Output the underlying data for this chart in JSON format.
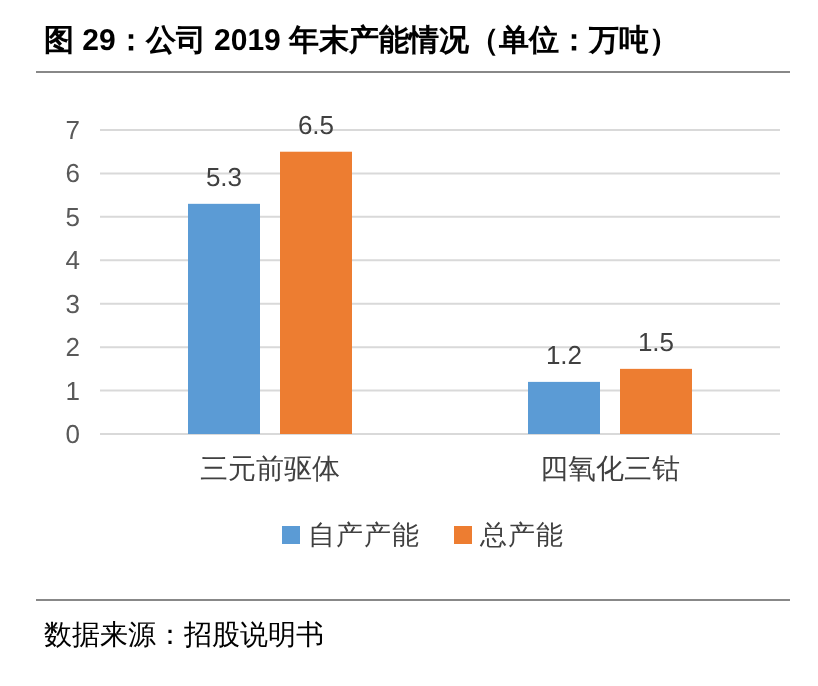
{
  "chart_data": {
    "type": "bar",
    "title": "图 29：公司 2019 年末产能情况（单位：万吨）",
    "categories": [
      "三元前驱体",
      "四氧化三钴"
    ],
    "series": [
      {
        "name": "自产产能",
        "color": "#5b9bd5",
        "values": [
          5.3,
          1.2
        ]
      },
      {
        "name": "总产能",
        "color": "#ed7d31",
        "values": [
          6.5,
          1.5
        ]
      }
    ],
    "ylim": [
      0,
      7
    ],
    "yticks": [
      0,
      1,
      2,
      3,
      4,
      5,
      6,
      7
    ],
    "grid": "y",
    "legend": "bottom",
    "data_labels": true,
    "annotations": [
      "数据来源：招股说明书"
    ]
  }
}
